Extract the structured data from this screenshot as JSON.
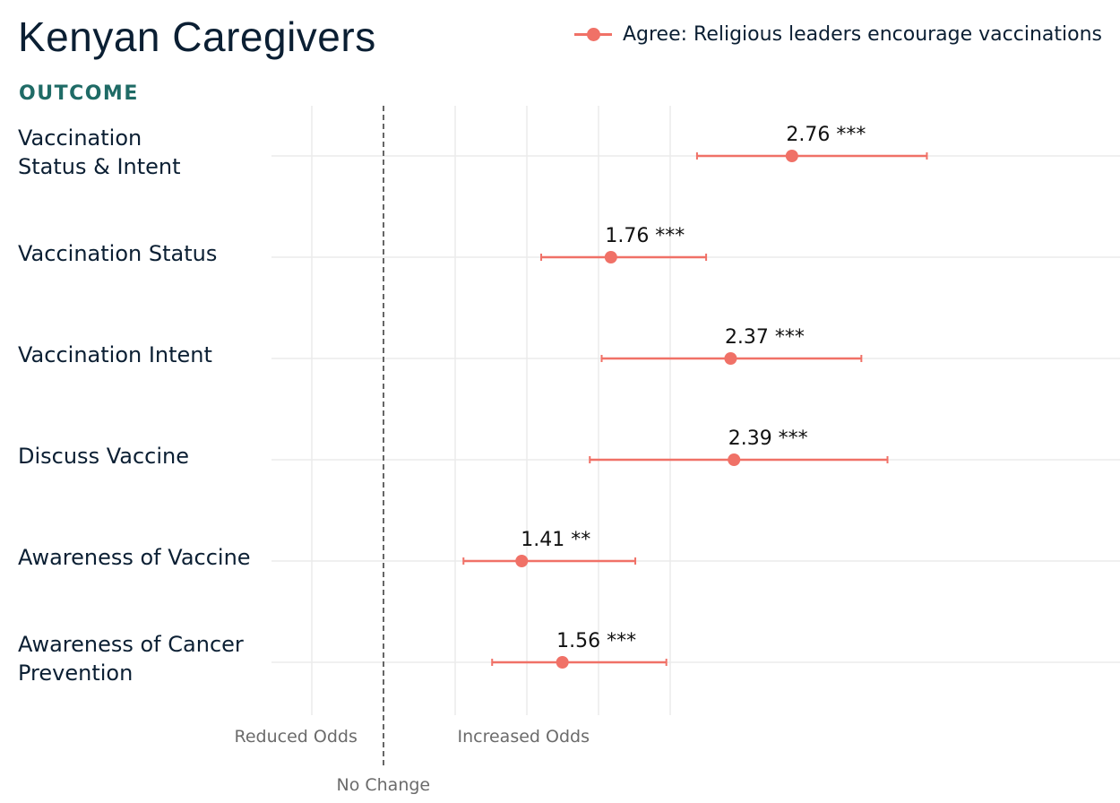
{
  "title": "Kenyan Caregivers",
  "subtitle": "OUTCOME",
  "legend": {
    "label": "Agree: Religious leaders encourage vaccinations",
    "color": "#f07167"
  },
  "axis": {
    "reduced_label": "Reduced Odds",
    "increased_label": "Increased Odds",
    "no_change_label": "No Change"
  },
  "rows": [
    {
      "label_lines": [
        "Vaccination",
        "Status & Intent"
      ]
    },
    {
      "label_lines": [
        "Vaccination Status"
      ]
    },
    {
      "label_lines": [
        "Vaccination Intent"
      ]
    },
    {
      "label_lines": [
        "Discuss Vaccine"
      ]
    },
    {
      "label_lines": [
        "Awareness of Vaccine"
      ]
    },
    {
      "label_lines": [
        "Awareness of Cancer",
        "Prevention"
      ]
    }
  ],
  "chart_data": {
    "type": "forest",
    "title": "Kenyan Caregivers",
    "subtitle": "OUTCOME",
    "reference_value": 1.0,
    "series": [
      {
        "name": "Agree: Religious leaders encourage vaccinations",
        "color": "#f07167",
        "points": [
          {
            "category": "Vaccination Status & Intent",
            "estimate": 2.76,
            "ci_low": 2.18,
            "ci_high": 3.86,
            "label": "2.76 ***"
          },
          {
            "category": "Vaccination Status",
            "estimate": 1.76,
            "ci_low": 1.48,
            "ci_high": 2.23,
            "label": "1.76 ***"
          },
          {
            "category": "Vaccination Intent",
            "estimate": 2.37,
            "ci_low": 1.72,
            "ci_high": 3.28,
            "label": "2.37 ***"
          },
          {
            "category": "Discuss Vaccine",
            "estimate": 2.39,
            "ci_low": 1.67,
            "ci_high": 3.5,
            "label": "2.39 ***"
          },
          {
            "category": "Awareness of Vaccine",
            "estimate": 1.41,
            "ci_low": 1.22,
            "ci_high": 1.87,
            "label": "1.41 **"
          },
          {
            "category": "Awareness of Cancer Prevention",
            "estimate": 1.56,
            "ci_low": 1.31,
            "ci_high": 2.02,
            "label": "1.56 ***"
          }
        ]
      }
    ],
    "x_scale": "log",
    "grid": true
  }
}
